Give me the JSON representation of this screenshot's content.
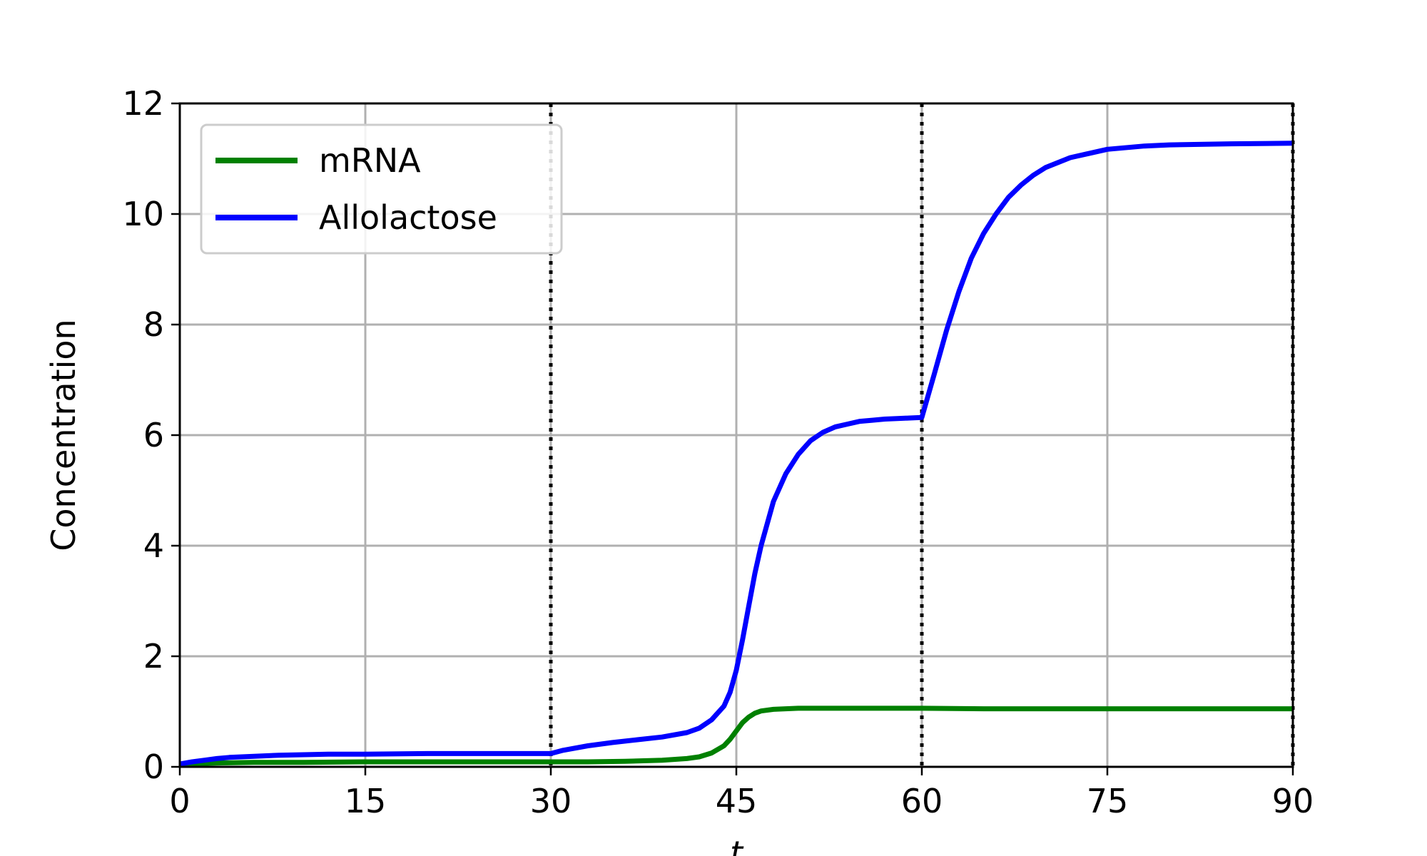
{
  "chart_data": {
    "type": "line",
    "title": "",
    "xlabel": "t",
    "ylabel": "Concentration",
    "xlim": [
      0,
      90
    ],
    "ylim": [
      0,
      12
    ],
    "xticks": [
      0,
      15,
      30,
      45,
      60,
      75,
      90
    ],
    "yticks": [
      0,
      2,
      4,
      6,
      8,
      10,
      12
    ],
    "grid": true,
    "legend_position": "top-left",
    "vertical_lines": [
      30,
      60,
      90
    ],
    "series": [
      {
        "name": "mRNA",
        "color": "#008000",
        "x": [
          0,
          3,
          6,
          10,
          15,
          20,
          25,
          30,
          33,
          36,
          39,
          41,
          42,
          43,
          44,
          44.5,
          45,
          45.5,
          46,
          46.5,
          47,
          48,
          49,
          50,
          52,
          55,
          60,
          65,
          70,
          75,
          80,
          85,
          90
        ],
        "y": [
          0.05,
          0.07,
          0.08,
          0.08,
          0.09,
          0.09,
          0.09,
          0.09,
          0.09,
          0.1,
          0.12,
          0.15,
          0.18,
          0.25,
          0.38,
          0.5,
          0.65,
          0.8,
          0.9,
          0.97,
          1.01,
          1.04,
          1.05,
          1.06,
          1.06,
          1.06,
          1.06,
          1.05,
          1.05,
          1.05,
          1.05,
          1.05,
          1.05
        ]
      },
      {
        "name": "Allolactose",
        "color": "#0000ff",
        "x": [
          0,
          1,
          2,
          3,
          4,
          5,
          6,
          8,
          10,
          12,
          15,
          20,
          25,
          30,
          31,
          33,
          35,
          37,
          39,
          41,
          42,
          43,
          44,
          44.5,
          45,
          45.5,
          46,
          46.5,
          47,
          48,
          49,
          50,
          51,
          52,
          53,
          54,
          55,
          56,
          57,
          58,
          59,
          60,
          61,
          62,
          63,
          64,
          65,
          66,
          67,
          68,
          69,
          70,
          72,
          75,
          78,
          80,
          85,
          90
        ],
        "y": [
          0.05,
          0.09,
          0.12,
          0.15,
          0.17,
          0.18,
          0.19,
          0.21,
          0.22,
          0.23,
          0.23,
          0.24,
          0.24,
          0.24,
          0.3,
          0.38,
          0.44,
          0.49,
          0.54,
          0.62,
          0.7,
          0.85,
          1.1,
          1.35,
          1.75,
          2.3,
          2.9,
          3.5,
          4.0,
          4.8,
          5.3,
          5.65,
          5.9,
          6.05,
          6.15,
          6.2,
          6.25,
          6.27,
          6.29,
          6.3,
          6.31,
          6.32,
          7.1,
          7.9,
          8.6,
          9.2,
          9.65,
          10.0,
          10.3,
          10.52,
          10.7,
          10.84,
          11.02,
          11.17,
          11.23,
          11.25,
          11.27,
          11.28
        ]
      }
    ]
  }
}
